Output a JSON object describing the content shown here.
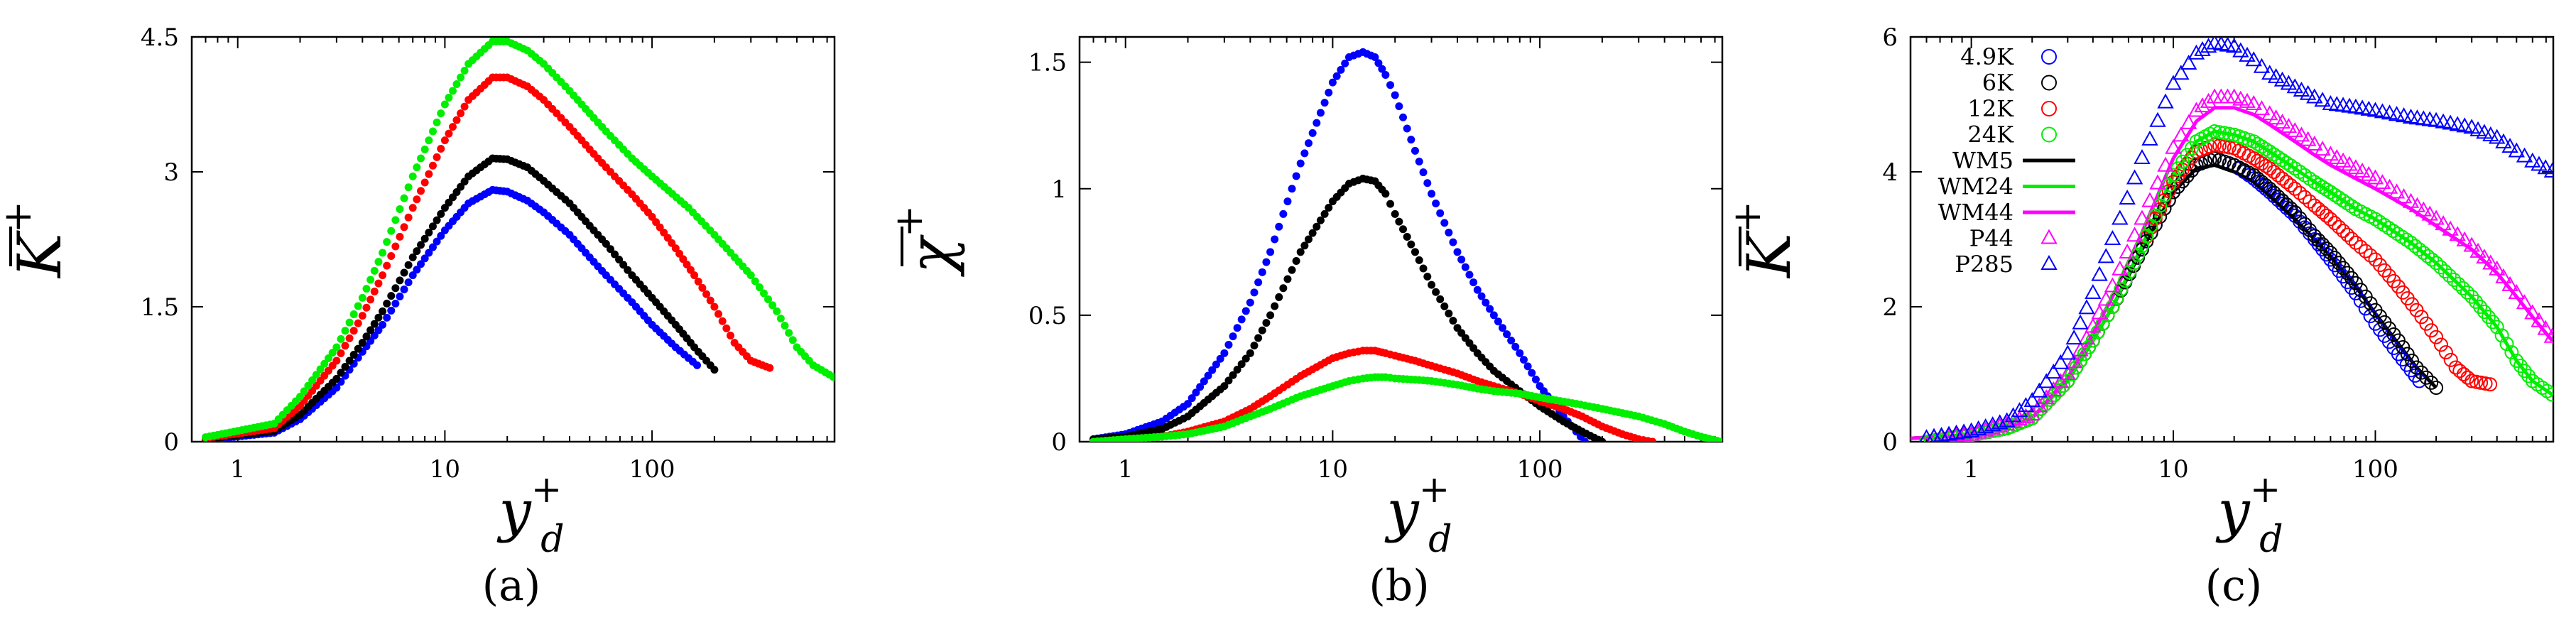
{
  "panel_labels": [
    "(a)",
    "(b)",
    "(c)"
  ],
  "colors": {
    "blue": "#0000ff",
    "black": "#000000",
    "red": "#ff0000",
    "green": "#00ee00",
    "magenta": "#ff00ff"
  },
  "chart_data": [
    {
      "type": "scatter",
      "xscale": "log",
      "xlim": [
        0.6,
        760
      ],
      "ylim": [
        0,
        4.5
      ],
      "xticks": [
        1,
        10,
        100
      ],
      "xtick_labels": [
        "1",
        "10",
        "100"
      ],
      "yticks": [
        0,
        1.5,
        3,
        4.5
      ],
      "ytick_labels": [
        "0",
        "1.5",
        "3",
        "4.5"
      ],
      "xlabel": {
        "base": "y",
        "sup": "+",
        "sub": "d"
      },
      "ylabel": {
        "base": "K",
        "sup": "+",
        "overline": true
      },
      "series": [
        {
          "name": "4.9K",
          "color": "#0000ff",
          "x": [
            0.7,
            1.5,
            2,
            3,
            4,
            5,
            7,
            10,
            13,
            17,
            20,
            25,
            30,
            40,
            50,
            60,
            80,
            100,
            130,
            165
          ],
          "y": [
            0.02,
            0.1,
            0.25,
            0.6,
            1.0,
            1.3,
            1.85,
            2.35,
            2.65,
            2.8,
            2.78,
            2.68,
            2.55,
            2.3,
            2.05,
            1.85,
            1.55,
            1.3,
            1.05,
            0.85
          ]
        },
        {
          "name": "6K",
          "color": "#000000",
          "x": [
            0.7,
            1.5,
            2,
            3,
            4,
            5,
            7,
            10,
            13,
            17,
            20,
            25,
            30,
            40,
            50,
            60,
            80,
            100,
            130,
            160,
            200
          ],
          "y": [
            0.03,
            0.12,
            0.3,
            0.7,
            1.1,
            1.45,
            2.05,
            2.6,
            2.95,
            3.15,
            3.14,
            3.05,
            2.9,
            2.65,
            2.4,
            2.2,
            1.85,
            1.6,
            1.3,
            1.05,
            0.8
          ]
        },
        {
          "name": "12K",
          "color": "#ff0000",
          "x": [
            0.7,
            1.5,
            2,
            3,
            4,
            5,
            7,
            10,
            13,
            17,
            20,
            25,
            30,
            40,
            50,
            60,
            80,
            100,
            130,
            160,
            200,
            250,
            300,
            370
          ],
          "y": [
            0.04,
            0.15,
            0.4,
            0.9,
            1.4,
            1.85,
            2.6,
            3.35,
            3.8,
            4.05,
            4.05,
            3.95,
            3.8,
            3.5,
            3.25,
            3.05,
            2.75,
            2.5,
            2.15,
            1.85,
            1.5,
            1.1,
            0.9,
            0.82
          ]
        },
        {
          "name": "24K",
          "color": "#00ee00",
          "x": [
            0.7,
            1.5,
            2,
            3,
            4,
            5,
            7,
            10,
            13,
            17,
            20,
            25,
            30,
            40,
            50,
            60,
            80,
            100,
            150,
            200,
            300,
            400,
            500,
            600,
            750
          ],
          "y": [
            0.05,
            0.2,
            0.5,
            1.05,
            1.6,
            2.1,
            2.95,
            3.75,
            4.2,
            4.45,
            4.45,
            4.35,
            4.2,
            3.9,
            3.65,
            3.45,
            3.15,
            2.95,
            2.6,
            2.3,
            1.85,
            1.45,
            1.05,
            0.85,
            0.72
          ]
        }
      ]
    },
    {
      "type": "scatter",
      "xscale": "log",
      "xlim": [
        0.6,
        760
      ],
      "ylim": [
        0,
        1.6
      ],
      "xticks": [
        1,
        10,
        100
      ],
      "xtick_labels": [
        "1",
        "10",
        "100"
      ],
      "yticks": [
        0,
        0.5,
        1,
        1.5
      ],
      "ytick_labels": [
        "0",
        "0.5",
        "1",
        "1.5"
      ],
      "xlabel": {
        "base": "y",
        "sup": "+",
        "sub": "d"
      },
      "ylabel": {
        "base": "χ",
        "sup": "+",
        "overline": true
      },
      "series": [
        {
          "name": "4.9K",
          "color": "#0000ff",
          "x": [
            0.7,
            1,
            1.5,
            2,
            3,
            4,
            5,
            7,
            10,
            12,
            14,
            16,
            18,
            20,
            25,
            30,
            40,
            50,
            60,
            80,
            100,
            130,
            165
          ],
          "y": [
            0.01,
            0.03,
            0.08,
            0.15,
            0.35,
            0.55,
            0.75,
            1.1,
            1.42,
            1.52,
            1.54,
            1.52,
            1.45,
            1.37,
            1.15,
            0.98,
            0.75,
            0.6,
            0.5,
            0.35,
            0.22,
            0.1,
            0.0
          ]
        },
        {
          "name": "6K",
          "color": "#000000",
          "x": [
            0.7,
            1,
            1.5,
            2,
            3,
            4,
            5,
            7,
            10,
            12,
            14,
            16,
            18,
            20,
            25,
            30,
            40,
            50,
            60,
            80,
            100,
            130,
            160,
            200
          ],
          "y": [
            0.01,
            0.02,
            0.05,
            0.1,
            0.22,
            0.35,
            0.5,
            0.75,
            0.95,
            1.02,
            1.04,
            1.03,
            0.98,
            0.9,
            0.75,
            0.62,
            0.45,
            0.35,
            0.28,
            0.2,
            0.14,
            0.08,
            0.04,
            0.0
          ]
        },
        {
          "name": "12K",
          "color": "#ff0000",
          "x": [
            0.7,
            1,
            1.5,
            2,
            3,
            4,
            5,
            7,
            10,
            12,
            14,
            16,
            18,
            20,
            25,
            30,
            40,
            50,
            60,
            80,
            100,
            130,
            160,
            200,
            250,
            300,
            350
          ],
          "y": [
            0.0,
            0.01,
            0.02,
            0.04,
            0.08,
            0.13,
            0.18,
            0.26,
            0.33,
            0.35,
            0.36,
            0.36,
            0.35,
            0.34,
            0.32,
            0.3,
            0.27,
            0.24,
            0.22,
            0.19,
            0.16,
            0.13,
            0.1,
            0.06,
            0.03,
            0.01,
            0.0
          ]
        },
        {
          "name": "24K",
          "color": "#00ee00",
          "x": [
            0.7,
            1,
            1.5,
            2,
            3,
            4,
            5,
            7,
            10,
            12,
            14,
            16,
            18,
            20,
            25,
            30,
            40,
            50,
            60,
            80,
            100,
            150,
            200,
            300,
            400,
            500,
            600,
            750
          ],
          "y": [
            0.0,
            0.01,
            0.02,
            0.03,
            0.06,
            0.1,
            0.13,
            0.18,
            0.22,
            0.24,
            0.25,
            0.255,
            0.255,
            0.25,
            0.245,
            0.24,
            0.225,
            0.21,
            0.2,
            0.19,
            0.175,
            0.15,
            0.13,
            0.1,
            0.07,
            0.04,
            0.02,
            0.0
          ]
        }
      ]
    },
    {
      "type": "scatter",
      "xscale": "log",
      "xlim": [
        0.5,
        760
      ],
      "ylim": [
        0,
        6
      ],
      "xticks": [
        1,
        10,
        100
      ],
      "xtick_labels": [
        "1",
        "10",
        "100"
      ],
      "yticks": [
        0,
        2,
        4,
        6
      ],
      "ytick_labels": [
        "0",
        "2",
        "4",
        "6"
      ],
      "xlabel": {
        "base": "y",
        "sup": "+",
        "sub": "d"
      },
      "ylabel": {
        "base": "K",
        "sup": "+",
        "overline": true
      },
      "legend": {
        "placement": "top-left",
        "entries": [
          {
            "label": "4.9K",
            "color": "#0000ff",
            "marker": "circle"
          },
          {
            "label": "6K",
            "color": "#000000",
            "marker": "circle"
          },
          {
            "label": "12K",
            "color": "#ff0000",
            "marker": "circle"
          },
          {
            "label": "24K",
            "color": "#00ee00",
            "marker": "circle"
          },
          {
            "label": "WM5",
            "color": "#000000",
            "marker": "line"
          },
          {
            "label": "WM24",
            "color": "#00ee00",
            "marker": "line"
          },
          {
            "label": "WM44",
            "color": "#ff00ff",
            "marker": "line"
          },
          {
            "label": "P44",
            "color": "#ff00ff",
            "marker": "triangle"
          },
          {
            "label": "P285",
            "color": "#0000ff",
            "marker": "triangle"
          }
        ]
      },
      "series": [
        {
          "name": "4.9K",
          "color": "#0000ff",
          "marker": "circle",
          "x": [
            0.6,
            1,
            1.5,
            2,
            3,
            4,
            5,
            7,
            10,
            13,
            16,
            20,
            25,
            30,
            40,
            50,
            60,
            80,
            100,
            130,
            165
          ],
          "y": [
            0.0,
            0.1,
            0.2,
            0.35,
            0.9,
            1.5,
            2.0,
            2.85,
            3.7,
            4.1,
            4.2,
            4.1,
            3.9,
            3.7,
            3.35,
            3.0,
            2.7,
            2.2,
            1.75,
            1.3,
            0.9
          ]
        },
        {
          "name": "6K",
          "color": "#000000",
          "marker": "circle",
          "x": [
            0.6,
            1,
            1.5,
            2,
            3,
            4,
            5,
            7,
            10,
            13,
            16,
            20,
            25,
            30,
            40,
            50,
            60,
            80,
            100,
            130,
            160,
            200
          ],
          "y": [
            0.0,
            0.1,
            0.2,
            0.35,
            0.9,
            1.5,
            2.0,
            2.85,
            3.7,
            4.1,
            4.2,
            4.1,
            3.95,
            3.75,
            3.4,
            3.05,
            2.8,
            2.35,
            1.95,
            1.5,
            1.1,
            0.8
          ]
        },
        {
          "name": "12K",
          "color": "#ff0000",
          "marker": "circle",
          "x": [
            0.6,
            1,
            1.5,
            2,
            3,
            4,
            5,
            7,
            10,
            13,
            16,
            20,
            25,
            30,
            40,
            50,
            60,
            80,
            100,
            130,
            160,
            200,
            250,
            300,
            370
          ],
          "y": [
            0.0,
            0.1,
            0.2,
            0.35,
            0.9,
            1.5,
            2.0,
            2.9,
            3.85,
            4.3,
            4.4,
            4.35,
            4.2,
            4.05,
            3.75,
            3.5,
            3.3,
            2.95,
            2.7,
            2.3,
            1.95,
            1.55,
            1.1,
            0.9,
            0.85
          ]
        },
        {
          "name": "24K",
          "color": "#00ee00",
          "marker": "circle",
          "x": [
            0.6,
            1,
            1.5,
            2,
            3,
            4,
            5,
            7,
            10,
            13,
            16,
            20,
            25,
            30,
            40,
            50,
            60,
            80,
            100,
            150,
            200,
            300,
            400,
            500,
            600,
            750
          ],
          "y": [
            0.0,
            0.1,
            0.2,
            0.35,
            0.9,
            1.5,
            2.0,
            2.9,
            3.95,
            4.45,
            4.6,
            4.55,
            4.45,
            4.3,
            4.05,
            3.85,
            3.7,
            3.45,
            3.3,
            2.95,
            2.65,
            2.15,
            1.7,
            1.2,
            0.9,
            0.7
          ]
        },
        {
          "name": "WM5",
          "color": "#000000",
          "marker": "line",
          "x": [
            0.5,
            1,
            1.5,
            2,
            3,
            4,
            5,
            7,
            10,
            13,
            16,
            20,
            25,
            30,
            40,
            50,
            60,
            80,
            100,
            130,
            160,
            200
          ],
          "y": [
            0.05,
            0.1,
            0.2,
            0.35,
            0.9,
            1.5,
            2.0,
            2.85,
            3.7,
            4.05,
            4.1,
            4.0,
            3.85,
            3.65,
            3.3,
            3.0,
            2.75,
            2.3,
            1.9,
            1.45,
            1.1,
            0.8
          ]
        },
        {
          "name": "WM24",
          "color": "#00ee00",
          "marker": "line",
          "x": [
            0.5,
            1,
            1.5,
            2,
            3,
            4,
            5,
            7,
            10,
            13,
            16,
            20,
            25,
            30,
            40,
            50,
            60,
            80,
            100,
            150,
            200,
            300,
            400,
            500,
            600,
            750
          ],
          "y": [
            0.05,
            0.1,
            0.2,
            0.35,
            0.9,
            1.5,
            2.0,
            2.9,
            3.95,
            4.45,
            4.6,
            4.55,
            4.45,
            4.3,
            4.05,
            3.85,
            3.7,
            3.45,
            3.3,
            2.95,
            2.65,
            2.15,
            1.7,
            1.2,
            0.9,
            0.7
          ]
        },
        {
          "name": "WM44",
          "color": "#ff00ff",
          "marker": "line",
          "x": [
            0.5,
            1,
            1.5,
            2,
            3,
            4,
            5,
            7,
            10,
            13,
            16,
            20,
            25,
            30,
            40,
            50,
            60,
            80,
            100,
            150,
            200,
            300,
            400,
            500,
            600,
            750
          ],
          "y": [
            0.05,
            0.1,
            0.2,
            0.35,
            0.95,
            1.6,
            2.15,
            3.1,
            4.2,
            4.75,
            4.95,
            4.95,
            4.85,
            4.7,
            4.45,
            4.25,
            4.1,
            3.9,
            3.75,
            3.45,
            3.2,
            2.85,
            2.5,
            2.15,
            1.85,
            1.5
          ]
        },
        {
          "name": "P44",
          "color": "#ff00ff",
          "marker": "triangle",
          "x": [
            0.6,
            1,
            1.5,
            2,
            3,
            4,
            5,
            7,
            10,
            13,
            16,
            20,
            25,
            30,
            40,
            50,
            60,
            80,
            100,
            150,
            200,
            300,
            400,
            500,
            600,
            750
          ],
          "y": [
            0.05,
            0.1,
            0.25,
            0.4,
            1.0,
            1.7,
            2.3,
            3.3,
            4.35,
            4.9,
            5.1,
            5.1,
            5.0,
            4.85,
            4.6,
            4.4,
            4.25,
            4.05,
            3.9,
            3.55,
            3.3,
            2.9,
            2.55,
            2.2,
            1.9,
            1.55
          ]
        },
        {
          "name": "P285",
          "color": "#0000ff",
          "marker": "triangle",
          "x": [
            0.6,
            1,
            1.5,
            2,
            3,
            4,
            5,
            7,
            10,
            13,
            16,
            20,
            25,
            30,
            40,
            50,
            60,
            80,
            100,
            150,
            200,
            300,
            400,
            500,
            600,
            750
          ],
          "y": [
            0.05,
            0.15,
            0.3,
            0.6,
            1.3,
            2.2,
            3.0,
            4.2,
            5.3,
            5.75,
            5.9,
            5.85,
            5.65,
            5.45,
            5.25,
            5.1,
            5.0,
            4.95,
            4.9,
            4.8,
            4.75,
            4.65,
            4.5,
            4.3,
            4.15,
            4.0
          ]
        }
      ]
    }
  ]
}
